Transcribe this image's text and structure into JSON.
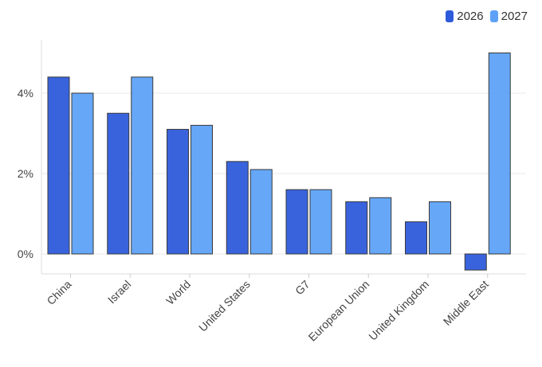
{
  "chart_data": {
    "type": "bar",
    "categories": [
      "China",
      "Israel",
      "World",
      "United States",
      "G7",
      "European Union",
      "United Kingdom",
      "Middle East"
    ],
    "series": [
      {
        "name": "2026",
        "color": "#2e5bdb",
        "values": [
          4.4,
          3.5,
          3.1,
          2.3,
          1.6,
          1.3,
          0.8,
          -0.4
        ]
      },
      {
        "name": "2027",
        "color": "#5ea2f7",
        "values": [
          4.0,
          4.4,
          3.2,
          2.1,
          1.6,
          1.4,
          1.3,
          5.0
        ]
      }
    ],
    "yticks": [
      "0%",
      "2%",
      "4%"
    ],
    "ytick_values": [
      0,
      2,
      4
    ],
    "ylim": [
      -0.5,
      5.2
    ],
    "legend": "top-right",
    "grid": true
  }
}
